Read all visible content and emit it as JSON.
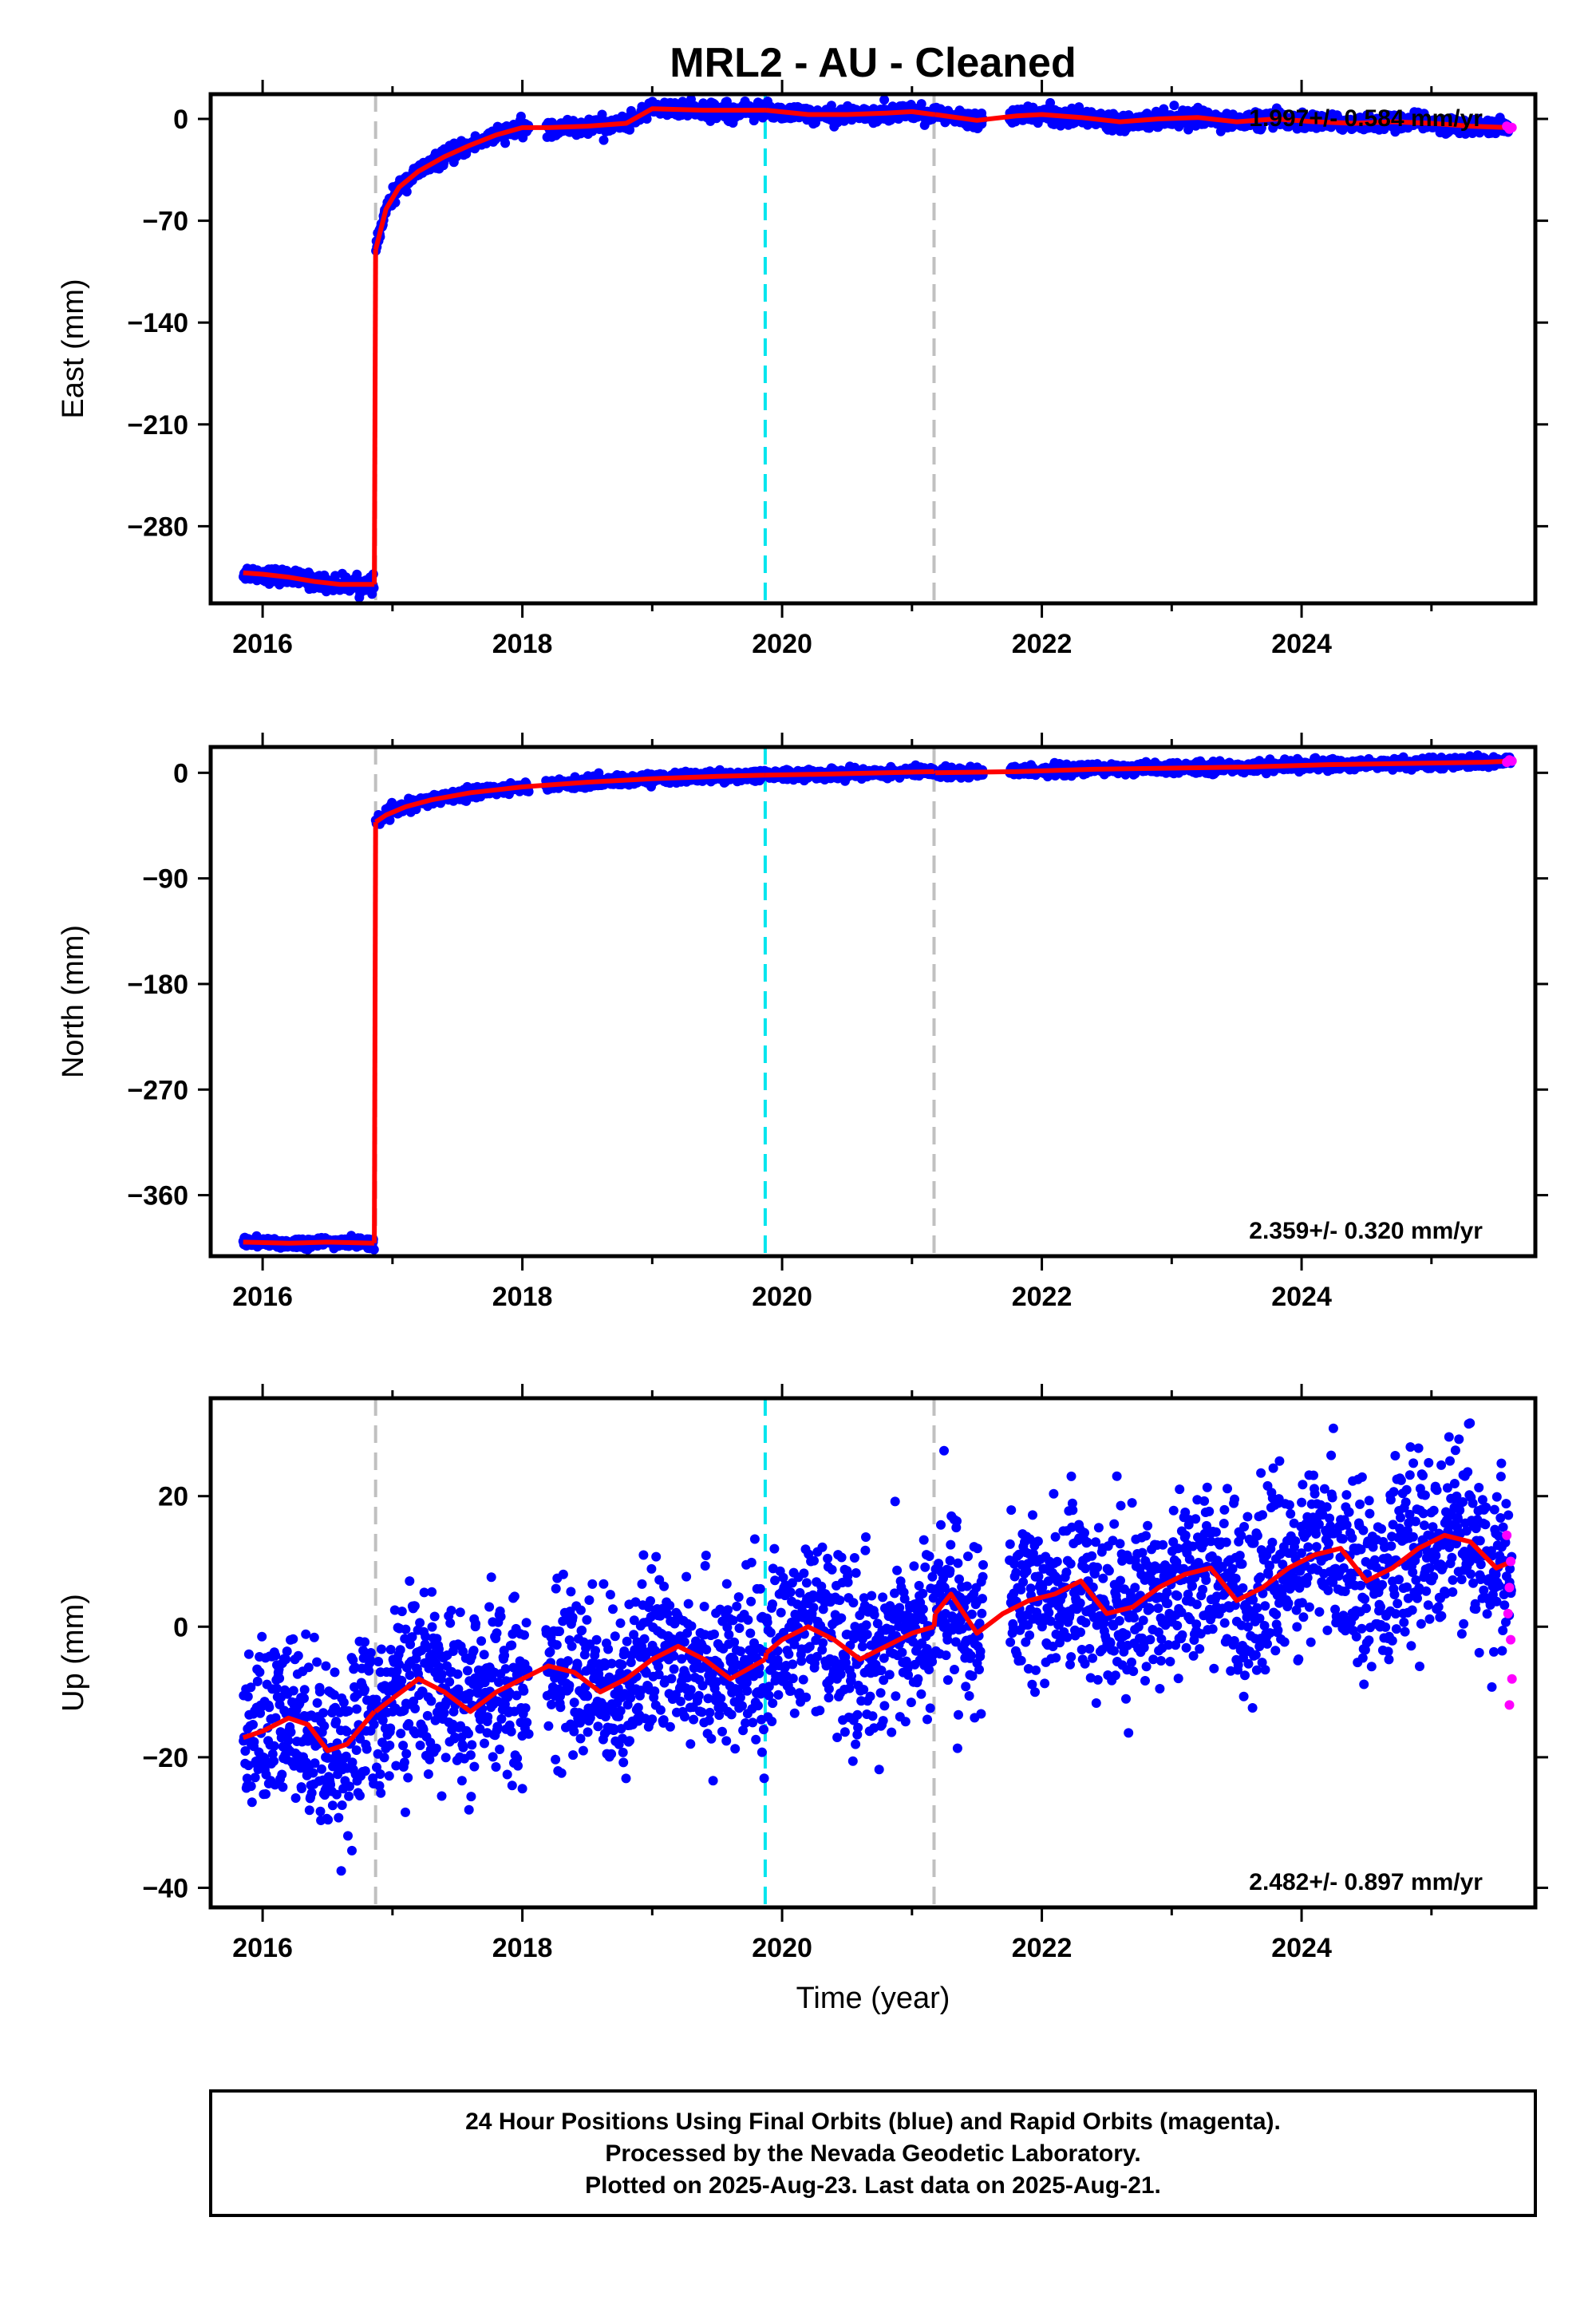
{
  "title": "MRL2  - AU - Cleaned",
  "colors": {
    "final_orbits": "#0000ff",
    "rapid_orbits": "#ff00ff",
    "model": "#ff0000",
    "antenna_change": "#c0c0c0",
    "earthquake": "#00e5ee",
    "frame": "#000000"
  },
  "x_axis": {
    "label": "Time (year)",
    "range": [
      2015.6,
      2025.8
    ],
    "tick_labels": [
      "2016",
      "2018",
      "2020",
      "2022",
      "2024"
    ],
    "tick_values": [
      2016,
      2018,
      2020,
      2022,
      2024
    ],
    "minor_ticks": [
      2017,
      2019,
      2021,
      2023,
      2025
    ]
  },
  "footer": {
    "line1": "24 Hour Positions Using Final Orbits (blue) and Rapid Orbits (magenta).",
    "line2": "Processed by the Nevada Geodetic Laboratory.",
    "line3": "Plotted on 2025-Aug-23. Last data on 2025-Aug-21."
  },
  "chart_data": [
    {
      "type": "scatter",
      "component": "East",
      "ylabel": "East (mm)",
      "ylim": [
        -333,
        17
      ],
      "ytick_values": [
        0,
        -70,
        -140,
        -210,
        -280
      ],
      "ytick_labels": [
        "0",
        "−70",
        "−140",
        "−210",
        "−280"
      ],
      "rate_text": "1.997+/- 0.584 mm/yr",
      "rate_position": "top-right",
      "vertical_lines": [
        {
          "x": 2016.87,
          "kind": "antenna_change"
        },
        {
          "x": 2019.87,
          "kind": "earthquake"
        },
        {
          "x": 2021.17,
          "kind": "antenna_change"
        }
      ],
      "model_segments": [
        {
          "x": [
            2015.85,
            2016.0,
            2016.2,
            2016.4,
            2016.6,
            2016.75,
            2016.86
          ],
          "y": [
            -312,
            -313,
            -315,
            -318,
            -320,
            -320,
            -320
          ]
        },
        {
          "x": [
            2016.87,
            2016.95,
            2017.05,
            2017.2,
            2017.4,
            2017.6,
            2017.8,
            2018.0,
            2018.2,
            2018.5,
            2018.8,
            2019.0,
            2019.4,
            2019.87
          ],
          "y": [
            -90,
            -62,
            -47,
            -36,
            -26,
            -18,
            -11,
            -6,
            -6,
            -5,
            -3,
            7,
            6,
            6
          ]
        },
        {
          "x": [
            2019.88,
            2020.2,
            2020.5,
            2020.8,
            2021.0,
            2021.17
          ],
          "y": [
            6,
            3,
            3,
            4,
            5,
            3
          ]
        },
        {
          "x": [
            2021.18,
            2021.5,
            2021.8,
            2022.0,
            2022.3,
            2022.6,
            2022.9,
            2023.2,
            2023.5,
            2023.8,
            2024.1,
            2024.4,
            2024.7,
            2025.0,
            2025.3,
            2025.6
          ],
          "y": [
            3,
            -1,
            2,
            3,
            1,
            -2,
            0,
            1,
            -2,
            0,
            -2,
            -3,
            -2,
            -3,
            -5,
            -6
          ]
        }
      ],
      "rapid_points": [
        {
          "x": 2025.58,
          "y": -5
        },
        {
          "x": 2025.6,
          "y": -7
        },
        {
          "x": 2025.62,
          "y": -6
        }
      ]
    },
    {
      "type": "scatter",
      "component": "North",
      "ylabel": "North (mm)",
      "ylim": [
        -412,
        22
      ],
      "ytick_values": [
        0,
        -90,
        -180,
        -270,
        -360
      ],
      "ytick_labels": [
        "0",
        "−90",
        "−180",
        "−270",
        "−360"
      ],
      "rate_text": "2.359+/- 0.320 mm/yr",
      "rate_position": "bottom-right",
      "vertical_lines": [
        {
          "x": 2016.87,
          "kind": "antenna_change"
        },
        {
          "x": 2019.87,
          "kind": "earthquake"
        },
        {
          "x": 2021.17,
          "kind": "antenna_change"
        }
      ],
      "model_segments": [
        {
          "x": [
            2015.85,
            2016.2,
            2016.5,
            2016.86
          ],
          "y": [
            -400,
            -401,
            -400,
            -401
          ]
        },
        {
          "x": [
            2016.87,
            2016.95,
            2017.1,
            2017.3,
            2017.6,
            2018.0,
            2018.5,
            2019.0,
            2019.5,
            2019.87
          ],
          "y": [
            -42,
            -36,
            -29,
            -23,
            -17,
            -12,
            -8,
            -5,
            -3,
            -2
          ]
        },
        {
          "x": [
            2019.88,
            2020.4,
            2020.8,
            2021.17
          ],
          "y": [
            -2,
            -1,
            0,
            1
          ]
        },
        {
          "x": [
            2021.18,
            2021.8,
            2022.4,
            2023.0,
            2023.6,
            2024.2,
            2024.8,
            2025.4,
            2025.62
          ],
          "y": [
            0,
            1,
            3,
            4,
            5,
            7,
            8,
            9,
            10
          ]
        }
      ],
      "rapid_points": [
        {
          "x": 2025.58,
          "y": 9
        },
        {
          "x": 2025.6,
          "y": 11
        },
        {
          "x": 2025.62,
          "y": 10
        }
      ]
    },
    {
      "type": "scatter",
      "component": "Up",
      "ylabel": "Up (mm)",
      "ylim": [
        -43,
        35
      ],
      "ytick_values": [
        20,
        0,
        -20,
        -40
      ],
      "ytick_labels": [
        "20",
        "0",
        "−20",
        "−40"
      ],
      "rate_text": "2.482+/- 0.897 mm/yr",
      "rate_position": "bottom-right",
      "vertical_lines": [
        {
          "x": 2016.87,
          "kind": "antenna_change"
        },
        {
          "x": 2019.87,
          "kind": "earthquake"
        },
        {
          "x": 2021.17,
          "kind": "antenna_change"
        }
      ],
      "model_segments": [
        {
          "x": [
            2015.85,
            2016.0,
            2016.2,
            2016.35,
            2016.5,
            2016.65,
            2016.86
          ],
          "y": [
            -17,
            -16,
            -14,
            -15,
            -19,
            -18,
            -13
          ]
        },
        {
          "x": [
            2016.87,
            2017.0,
            2017.2,
            2017.4,
            2017.6,
            2017.8,
            2018.0,
            2018.2,
            2018.4,
            2018.6,
            2018.8,
            2019.0,
            2019.2,
            2019.4,
            2019.6,
            2019.87
          ],
          "y": [
            -13,
            -11,
            -8,
            -10,
            -13,
            -10,
            -8,
            -6,
            -7,
            -10,
            -8,
            -5,
            -3,
            -5,
            -8,
            -5
          ]
        },
        {
          "x": [
            2019.88,
            2020.0,
            2020.2,
            2020.4,
            2020.6,
            2020.8,
            2021.0,
            2021.17
          ],
          "y": [
            -4,
            -2,
            0,
            -2,
            -5,
            -3,
            -1,
            0
          ]
        },
        {
          "x": [
            2021.18,
            2021.3,
            2021.5,
            2021.7,
            2021.9,
            2022.1,
            2022.3,
            2022.5,
            2022.7,
            2022.9,
            2023.1,
            2023.3,
            2023.5,
            2023.7,
            2023.9,
            2024.1,
            2024.3,
            2024.5,
            2024.7,
            2024.9,
            2025.1,
            2025.3,
            2025.5,
            2025.62
          ],
          "y": [
            2,
            5,
            -1,
            2,
            4,
            5,
            7,
            2,
            3,
            6,
            8,
            9,
            4,
            6,
            9,
            11,
            12,
            7,
            9,
            12,
            14,
            13,
            9,
            10
          ]
        }
      ],
      "rapid_points": [
        {
          "x": 2025.58,
          "y": 14
        },
        {
          "x": 2025.6,
          "y": 6
        },
        {
          "x": 2025.61,
          "y": -2
        },
        {
          "x": 2025.62,
          "y": -8
        },
        {
          "x": 2025.6,
          "y": -12
        },
        {
          "x": 2025.59,
          "y": 2
        },
        {
          "x": 2025.61,
          "y": 10
        }
      ]
    }
  ]
}
